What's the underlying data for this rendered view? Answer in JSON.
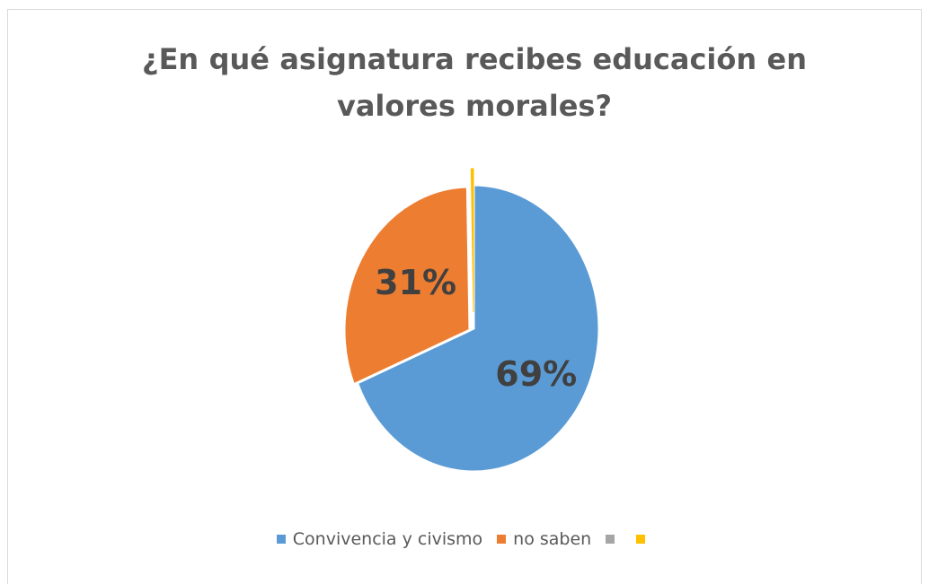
{
  "chart_data": {
    "type": "pie",
    "title": "¿En qué asignatura recibes educación en valores morales?",
    "categories": [
      "Convivencia y civismo",
      "no saben",
      "",
      ""
    ],
    "values": [
      69,
      31,
      0,
      0.3
    ],
    "labels": [
      "69%",
      "31%",
      "",
      ""
    ],
    "colors": [
      "#5b9bd5",
      "#ed7d31",
      "#a5a5a5",
      "#ffc000"
    ],
    "legend_position": "bottom"
  }
}
